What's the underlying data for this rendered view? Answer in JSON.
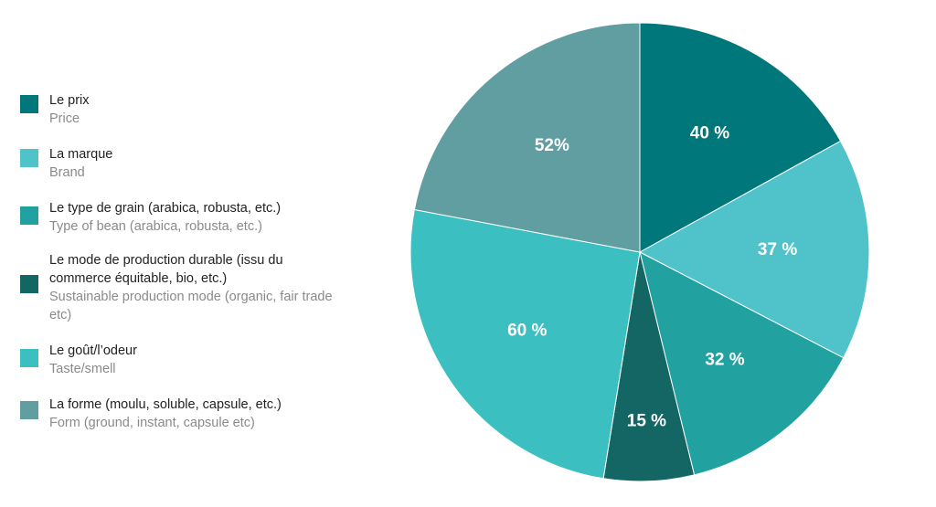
{
  "chart_data": {
    "type": "pie",
    "note_values_not_summing": true,
    "slices": [
      {
        "fr": "Le prix",
        "en": "Price",
        "value": 40,
        "label": "40 %",
        "color": "#00777a"
      },
      {
        "fr": "La marque",
        "en": "Brand",
        "value": 37,
        "label": "37 %",
        "color": "#50c2ca"
      },
      {
        "fr": "Le type de grain (arabica, robusta, etc.)",
        "en": "Type of bean (arabica, robusta, etc.)",
        "value": 32,
        "label": "32 %",
        "color": "#21a19f"
      },
      {
        "fr": "Le mode de production durable (issu du commerce équitable, bio, etc.)",
        "en": "Sustainable production mode (organic, fair trade etc)",
        "value": 15,
        "label": "15 %",
        "color": "#146664"
      },
      {
        "fr": "Le goût/l’odeur",
        "en": "Taste/smell",
        "value": 60,
        "label": "60 %",
        "color": "#3cbfc0"
      },
      {
        "fr": "La forme (moulu, soluble, capsule, etc.)",
        "en": "Form (ground, instant, capsule etc)",
        "value": 52,
        "label": "52%",
        "color": "#619ea2"
      }
    ],
    "legend_position": "left"
  }
}
